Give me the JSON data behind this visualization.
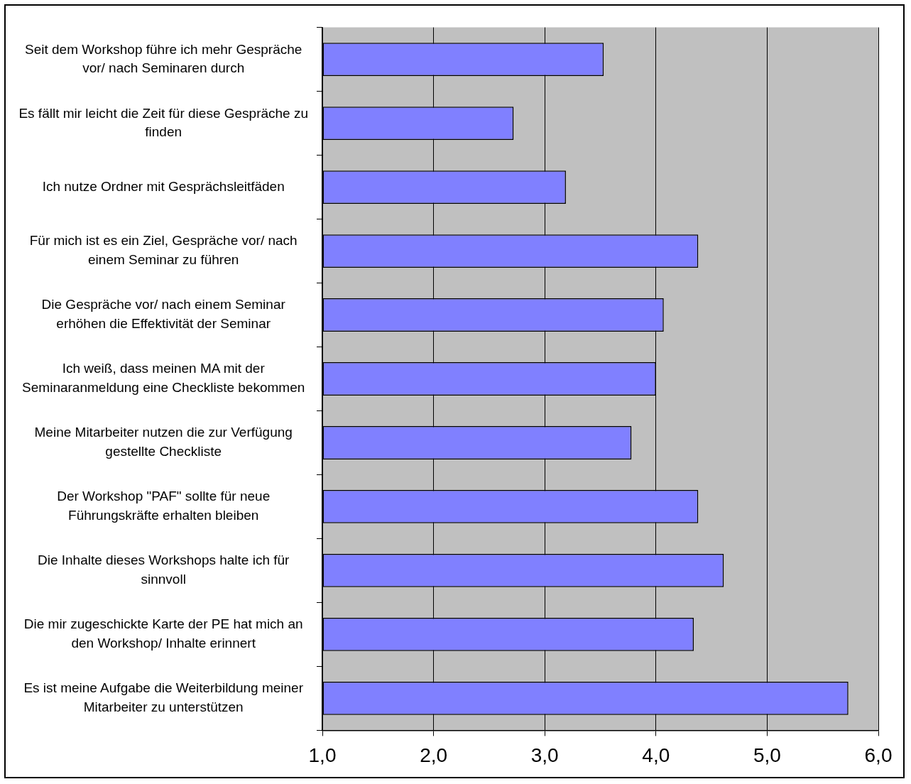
{
  "chart_data": {
    "type": "bar",
    "orientation": "horizontal",
    "categories": [
      "Seit dem Workshop führe ich mehr Gespräche vor/ nach Seminaren durch",
      "Es fällt mir leicht die Zeit für diese Gespräche zu finden",
      "Ich nutze Ordner mit Gesprächsleitfäden",
      "Für mich ist es ein Ziel, Gespräche vor/ nach einem Seminar zu führen",
      "Die Gespräche vor/ nach einem Seminar erhöhen die Effektivität der Seminar",
      "Ich weiß, dass meinen MA mit der Seminaranmeldung eine Checkliste bekommen",
      "Meine Mitarbeiter nutzen die zur Verfügung gestellte Checkliste",
      "Der Workshop \"PAF\" sollte für neue Führungskräfte erhalten bleiben",
      "Die Inhalte dieses Workshops halte ich für sinnvoll",
      "Die mir zugeschickte Karte der PE hat mich an den Workshop/ Inhalte erinnert",
      "Es ist meine Aufgabe die Weiterbildung meiner Mitarbeiter zu unterstützen"
    ],
    "values": [
      3.53,
      2.72,
      3.19,
      4.38,
      4.07,
      4.0,
      3.78,
      4.38,
      4.61,
      4.34,
      5.73
    ],
    "color": "#8080ff",
    "xlim": [
      1,
      6
    ],
    "xticks": [
      {
        "value": 1,
        "label": "1,0"
      },
      {
        "value": 2,
        "label": "2,0"
      },
      {
        "value": 3,
        "label": "3,0"
      },
      {
        "value": 4,
        "label": "4,0"
      },
      {
        "value": 5,
        "label": "5,0"
      },
      {
        "value": 6,
        "label": "6,0"
      }
    ],
    "grid": "x",
    "legend": false
  }
}
